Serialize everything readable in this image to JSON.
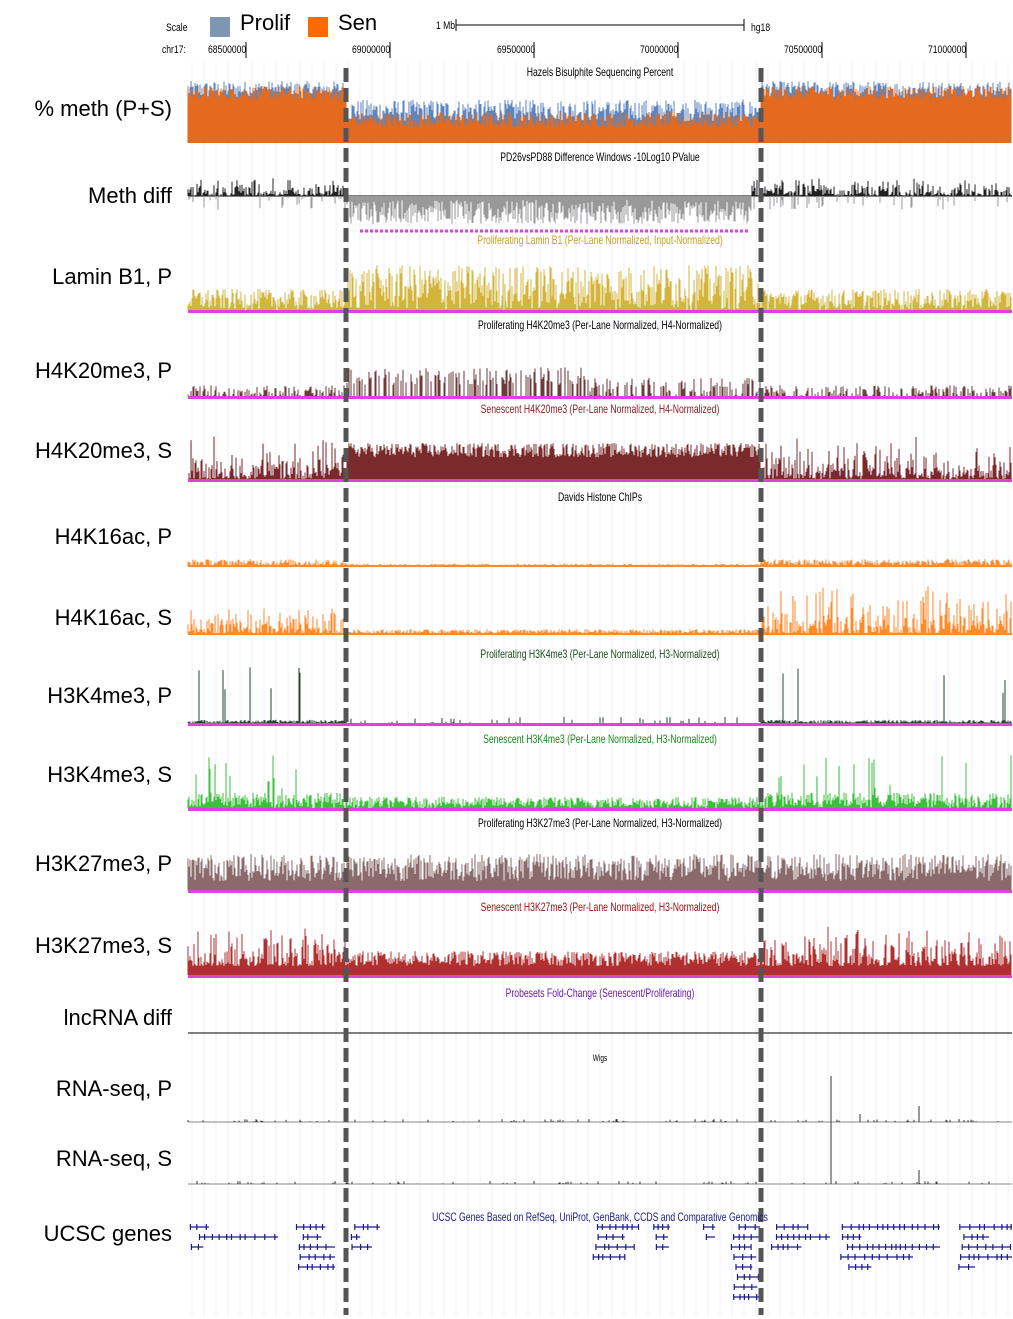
{
  "legend": {
    "items": [
      {
        "label": "Prolif",
        "color": "#7f96b2"
      },
      {
        "label": "Sen",
        "color": "#ff6a00"
      }
    ]
  },
  "ruler": {
    "scale_label": "Scale",
    "chrom_label": "chr17:",
    "scale_bar_label": "1 Mb",
    "assembly": "hg18",
    "positions": [
      "68500000",
      "69000000",
      "69500000",
      "70000000",
      "70500000",
      "71000000"
    ]
  },
  "tracks": [
    {
      "id": "meth",
      "label": "% meth (P+S)",
      "title": "Hazels Bisulphite Sequencing Percent",
      "title_color": "#000000",
      "color": "#e36a1e"
    },
    {
      "id": "methdiff",
      "label": "Meth diff",
      "title": "PD26vsPD88 Difference Windows -10Log10 PValue",
      "title_color": "#000000",
      "color": "#000000"
    },
    {
      "id": "laminb1",
      "label": "Lamin B1, P",
      "title": "Proliferating Lamin B1 (Per-Lane Normalized, Input-Normalized)",
      "title_color": "#c8a020",
      "color": "#d4b43a"
    },
    {
      "id": "h4k20p",
      "label": "H4K20me3, P",
      "title": "Proliferating H4K20me3 (Per-Lane Normalized, H4-Normalized)",
      "title_color": "#000000",
      "color": "#6e3a3a"
    },
    {
      "id": "h4k20s",
      "label": "H4K20me3, S",
      "title": "Senescent H4K20me3 (Per-Lane Normalized, H4-Normalized)",
      "title_color": "#8b1a1a",
      "color": "#7a2a2a"
    },
    {
      "id": "h4k16p",
      "label": "H4K16ac, P",
      "title": "Davids Histone ChIPs",
      "title_color": "#000000",
      "color": "#ff8a2a"
    },
    {
      "id": "h4k16s",
      "label": "H4K16ac, S",
      "title": "",
      "title_color": "#000000",
      "color": "#ff8a2a"
    },
    {
      "id": "h3k4p",
      "label": "H3K4me3, P",
      "title": "Proliferating H3K4me3 (Per-Lane Normalized, H3-Normalized)",
      "title_color": "#1a4a1a",
      "color": "#1f4a2a"
    },
    {
      "id": "h3k4s",
      "label": "H3K4me3, S",
      "title": "Senescent H3K4me3 (Per-Lane Normalized, H3-Normalized)",
      "title_color": "#1a8a1a",
      "color": "#3cbf3c"
    },
    {
      "id": "h3k27p",
      "label": "H3K27me3, P",
      "title": "Proliferating H3K27me3 (Per-Lane Normalized, H3-Normalized)",
      "title_color": "#000000",
      "color": "#8a6a6a"
    },
    {
      "id": "h3k27s",
      "label": "H3K27me3, S",
      "title": "Senescent H3K27me3 (Per-Lane Normalized, H3-Normalized)",
      "title_color": "#a01010",
      "color": "#b03030"
    },
    {
      "id": "lncrna",
      "label": "lncRNA diff",
      "title": "Probesets Fold-Change (Senescent/Proliferating)",
      "title_color": "#6a1ab0",
      "color": "#000000"
    },
    {
      "id": "rnap",
      "label": "RNA-seq, P",
      "title": "Wigs",
      "title_color": "#000000",
      "color": "#000000"
    },
    {
      "id": "rnas",
      "label": "RNA-seq, S",
      "title": "",
      "title_color": "#000000",
      "color": "#000000"
    },
    {
      "id": "genes",
      "label": "UCSC genes",
      "title": "UCSC Genes Based on RefSeq, UniProt, GenBank, CCDS and Comparative Genomics",
      "title_color": "#1a1a8a",
      "color": "#1a1a8a"
    }
  ],
  "colors": {
    "highlight_line": "#555555",
    "magenta_baseline": "#e040e0",
    "grid": "#c8c8f0",
    "prolif_meth": "#5b86c0"
  }
}
